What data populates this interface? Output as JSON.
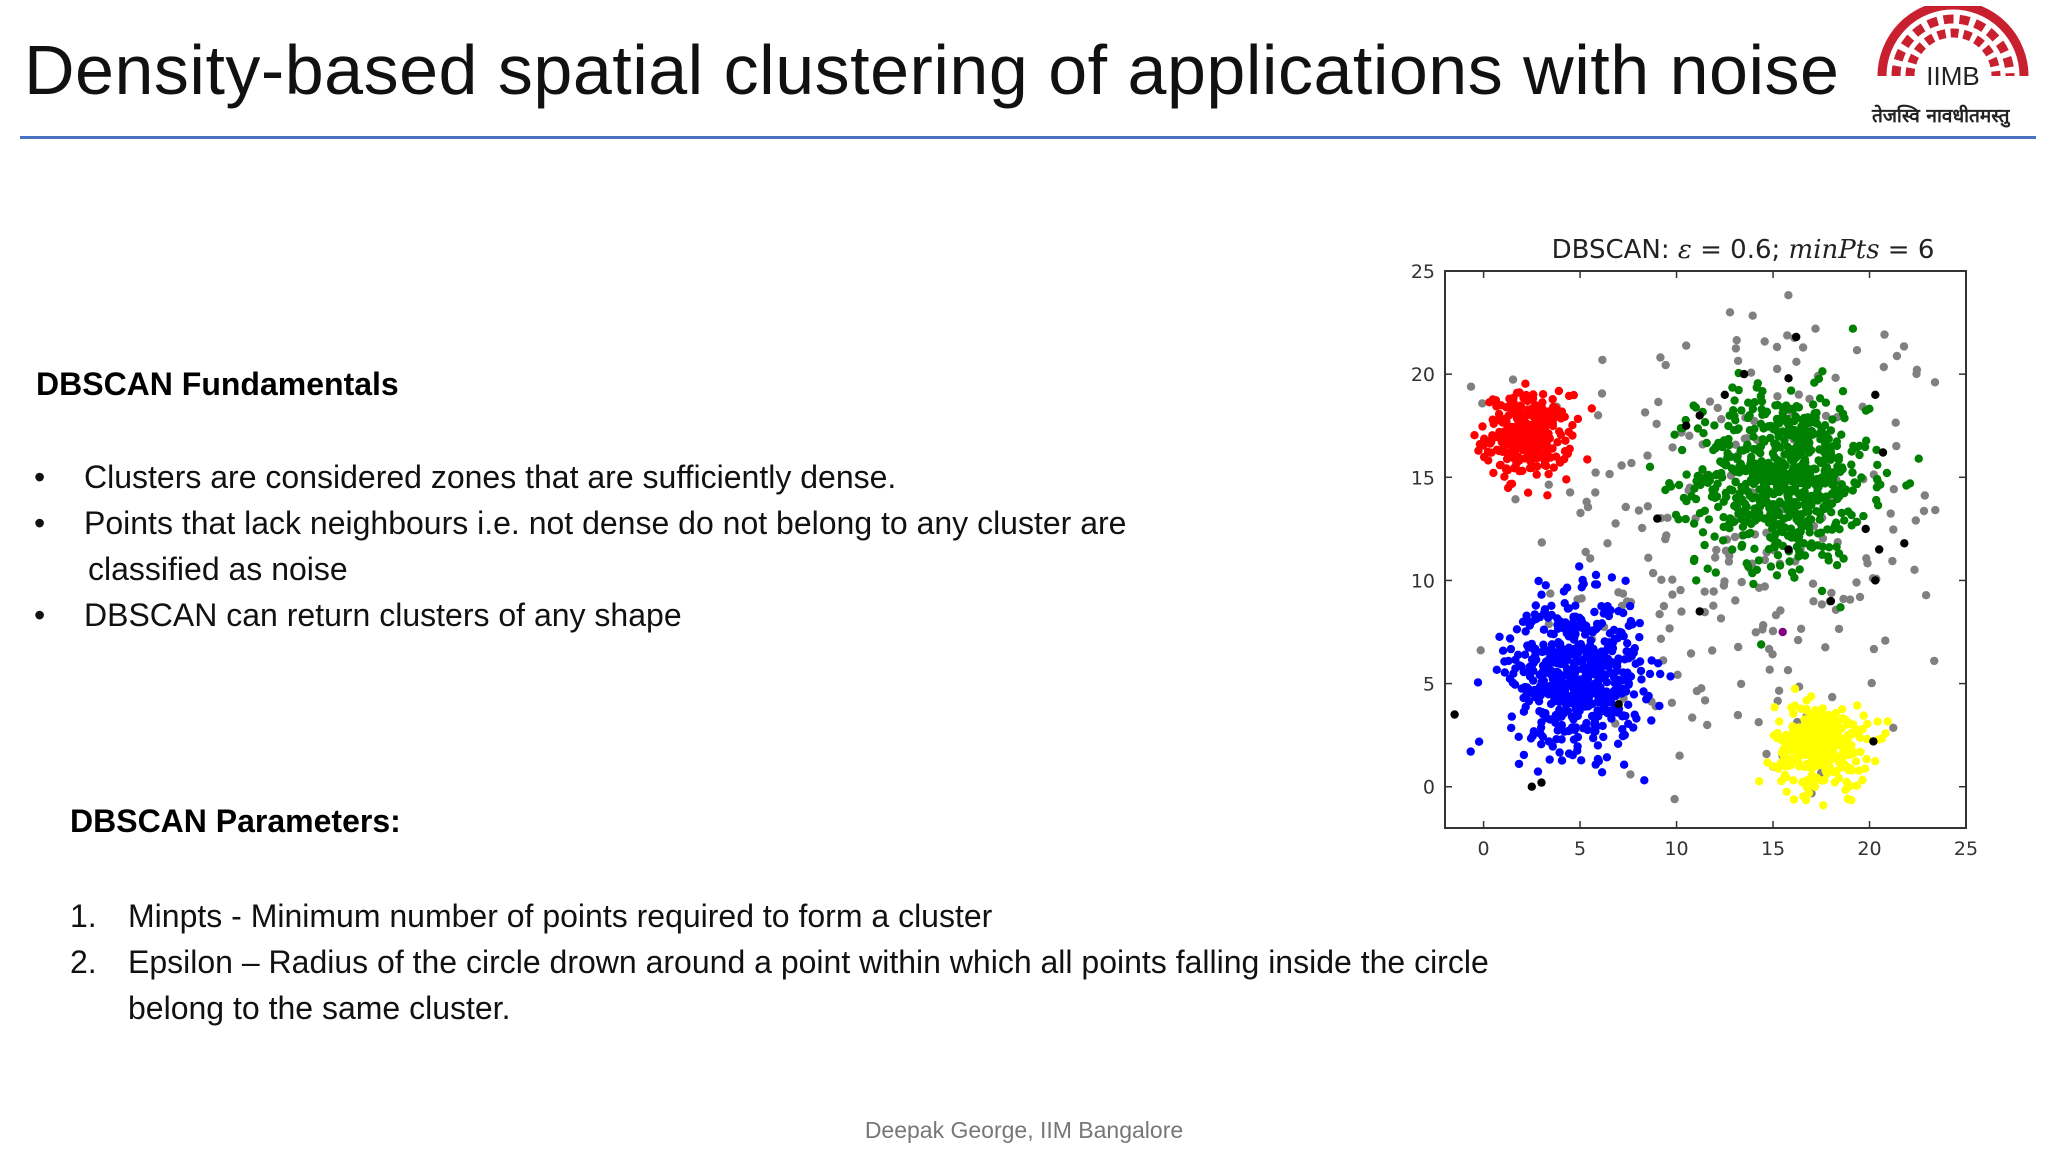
{
  "slide": {
    "title": "Density-based spatial clustering of applications with noise",
    "logo": {
      "text": "IIMB",
      "motto": "तेजस्वि नावधीतमस्तु",
      "brand_color": "#c8202e"
    },
    "fundamentals": {
      "heading": "DBSCAN Fundamentals",
      "bullets": [
        {
          "text": "Clusters are considered zones that are sufficiently dense."
        },
        {
          "text": "Points that lack neighbours i.e. not dense do not belong to any cluster are",
          "continuation": "classified as noise"
        },
        {
          "text": "DBSCAN can return clusters of any shape"
        }
      ]
    },
    "parameters": {
      "heading": "DBSCAN Parameters:",
      "items": [
        {
          "num": "1.",
          "text": "Minpts - Minimum number of points required to form a cluster"
        },
        {
          "num": "2.",
          "text": "Epsilon – Radius of the circle drown around a point within which all points falling inside the circle",
          "continuation": "belong to the same cluster."
        }
      ]
    },
    "footer": "Deepak George, IIM Bangalore",
    "accent_color": "#4a72c4"
  },
  "chart_data": {
    "type": "scatter",
    "title": "DBSCAN: ε = 0.6; minPts = 6",
    "title_parts": {
      "prefix": "DBSCAN: ",
      "eps_symbol": "ε",
      "eps_value": " = 0.6; ",
      "minpts_symbol": "minPts",
      "minpts_value": " = 6"
    },
    "xlabel": "",
    "ylabel": "",
    "xlim": [
      -2,
      25
    ],
    "ylim": [
      -2,
      25
    ],
    "xticks": [
      0,
      5,
      10,
      15,
      20,
      25
    ],
    "yticks": [
      0,
      5,
      10,
      15,
      20,
      25
    ],
    "series": [
      {
        "color": "#ff0000",
        "center": [
          2.3,
          17
        ],
        "spread": [
          1.1,
          1.0
        ],
        "count": 300
      },
      {
        "color": "#008000",
        "center": [
          15.5,
          15
        ],
        "spread": [
          2.2,
          2.1
        ],
        "count": 700
      },
      {
        "color": "#0000ff",
        "center": [
          4.8,
          5.5
        ],
        "spread": [
          1.7,
          1.8
        ],
        "count": 600
      },
      {
        "color": "#ffff00",
        "center": [
          17.5,
          2.0
        ],
        "spread": [
          1.2,
          1.0
        ],
        "count": 320
      },
      {
        "color": "#808080",
        "role": "noise",
        "center": [
          13.5,
          12
        ],
        "spread": [
          5.5,
          6.5
        ],
        "count": 260
      },
      {
        "color": "#000000",
        "role": "outliers",
        "points": [
          [
            16.2,
            21.8
          ],
          [
            13.5,
            20
          ],
          [
            15.8,
            19.8
          ],
          [
            20.3,
            19
          ],
          [
            12.5,
            19
          ],
          [
            11.2,
            18
          ],
          [
            10.5,
            17.5
          ],
          [
            20.7,
            16.2
          ],
          [
            9,
            13
          ],
          [
            19.8,
            12.5
          ],
          [
            20.5,
            11.5
          ],
          [
            21.8,
            11.8
          ],
          [
            20.3,
            10
          ],
          [
            18,
            9
          ],
          [
            15.8,
            11.5
          ],
          [
            11.2,
            8.5
          ],
          [
            -1.5,
            3.5
          ],
          [
            3,
            0.2
          ],
          [
            2.5,
            0
          ],
          [
            20.2,
            2.2
          ],
          [
            7,
            4
          ]
        ]
      },
      {
        "color": "#800080",
        "role": "outliers",
        "points": [
          [
            15.5,
            7.5
          ]
        ]
      }
    ]
  }
}
